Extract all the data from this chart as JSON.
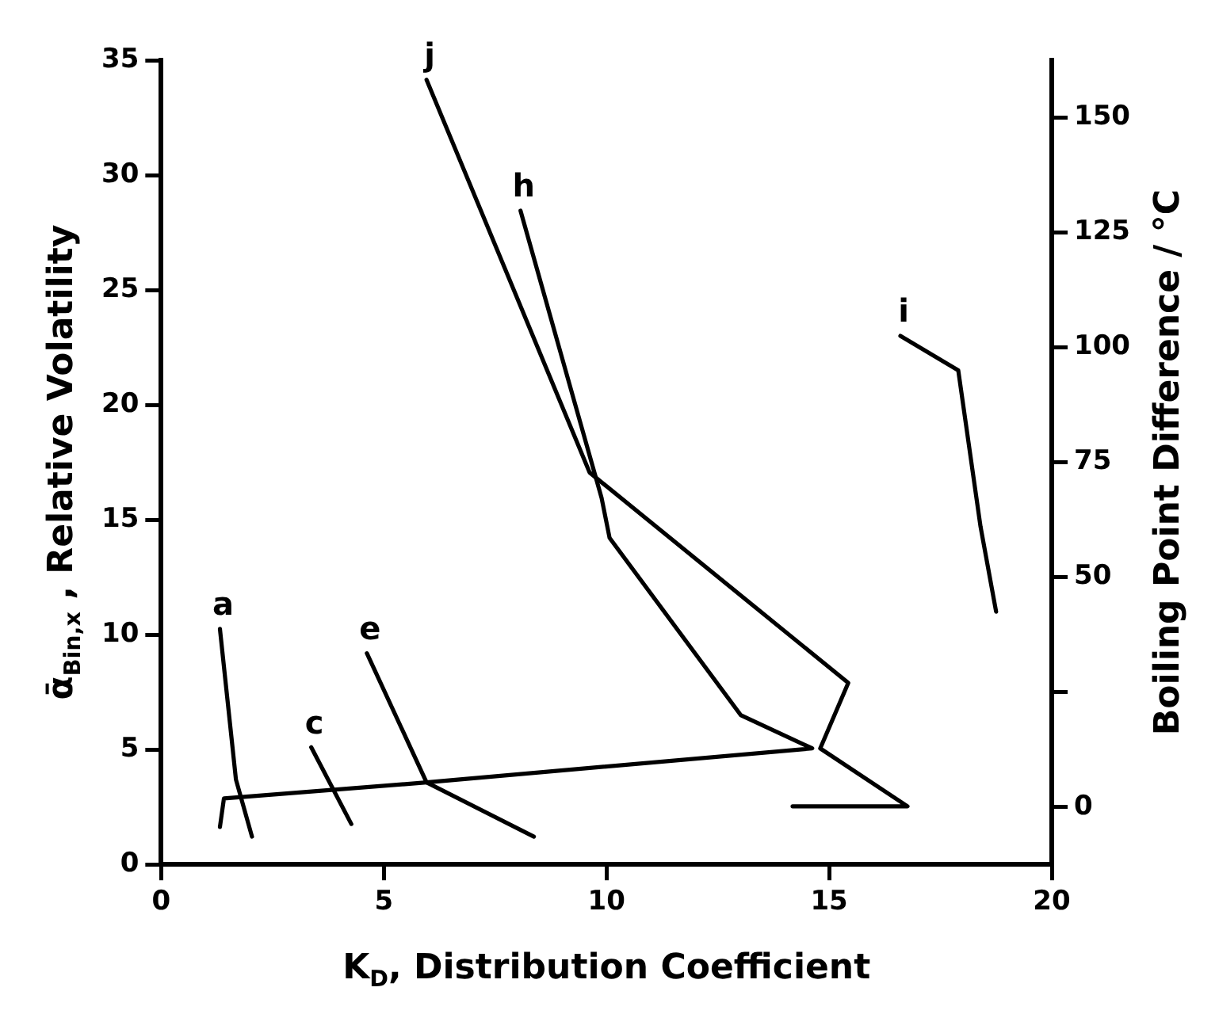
{
  "chart_data": {
    "type": "line",
    "xlabel": "K$_{D}$, Distribution Coefficient",
    "ylabel": "ᾱ$_{Bin,x}$ , Relative Volatility",
    "y2label": "Boiling Point Difference / °C",
    "xlim": [
      0,
      20
    ],
    "xticks": [
      0,
      5,
      10,
      15,
      20
    ],
    "ylim": [
      0,
      35
    ],
    "yticks": [
      0,
      5,
      10,
      15,
      20,
      25,
      30,
      35
    ],
    "y2_categories": [
      "150",
      "125",
      "100",
      "75",
      "50",
      null,
      "0"
    ],
    "grid": false,
    "legend": false,
    "marker": "none",
    "line_style": "solid",
    "series": [
      {
        "name": "a",
        "color": "#000000",
        "x": [
          1.32,
          1.68,
          2.04
        ],
        "values": [
          10.25,
          3.69,
          1.21
        ]
      },
      {
        "name": "c",
        "color": "#000000",
        "x": [
          3.37,
          4.27
        ],
        "values": [
          5.1,
          1.76
        ]
      },
      {
        "name": "e",
        "color": "#000000",
        "x": [
          4.62,
          5.96,
          8.37
        ],
        "values": [
          9.19,
          3.57,
          1.21
        ]
      },
      {
        "name": "h",
        "color": "#000000",
        "x": [
          8.07,
          9.89,
          10.07,
          13.02,
          14.62,
          5.96,
          1.41,
          1.32
        ],
        "values": [
          28.45,
          15.95,
          14.21,
          6.49,
          5.05,
          3.57,
          2.87,
          1.63
        ]
      },
      {
        "name": "i",
        "color": "#000000",
        "x": [
          16.6,
          17.9,
          18.4,
          18.75
        ],
        "values": [
          23.0,
          21.5,
          14.7,
          11.0
        ]
      },
      {
        "name": "j",
        "color": "#000000",
        "x": [
          5.96,
          9.62,
          15.43,
          14.8,
          16.76,
          14.18
        ],
        "values": [
          34.15,
          17.06,
          7.9,
          5.05,
          2.53,
          2.53
        ]
      }
    ]
  }
}
